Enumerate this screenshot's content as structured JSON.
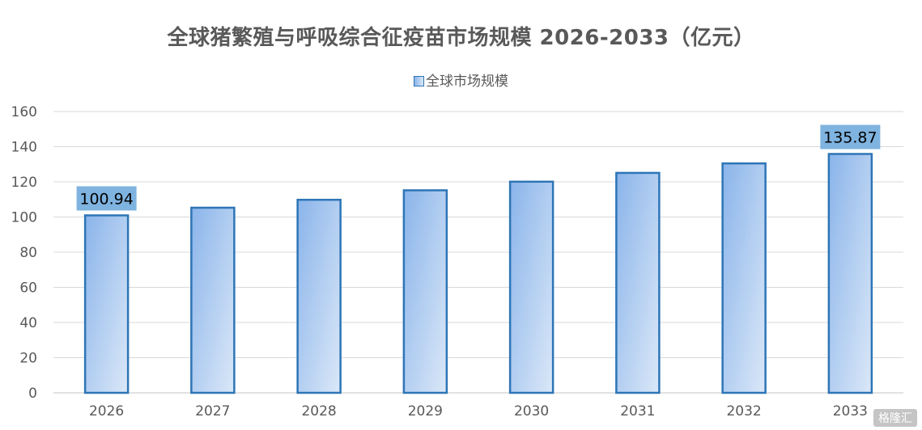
{
  "chart_data": {
    "type": "bar",
    "title": "全球猪繁殖与呼吸综合征疫苗市场规模 2026-2033（亿元）",
    "categories": [
      "2026",
      "2027",
      "2028",
      "2029",
      "2030",
      "2031",
      "2032",
      "2033"
    ],
    "series": [
      {
        "name": "全球市场规模",
        "values": [
          100.94,
          105.3,
          109.8,
          115.2,
          120.1,
          125.1,
          130.5,
          135.87
        ]
      }
    ],
    "data_labels": [
      "100.94",
      "",
      "",
      "",
      "",
      "",
      "",
      "135.87"
    ],
    "ylim": [
      0,
      160
    ],
    "yticks": [
      "0",
      "20",
      "40",
      "60",
      "80",
      "100",
      "120",
      "140",
      "160"
    ],
    "xlabel": "",
    "ylabel": "",
    "grid": true,
    "legend_position": "top-center"
  },
  "colors": {
    "bar_fill_start": "#8ab4ea",
    "bar_fill_end": "#dbe8f8",
    "bar_border": "#2e75b6",
    "label_background": "#7fb3e0",
    "gridline": "#d9d9d9",
    "text": "#595959"
  },
  "watermark": "格隆汇"
}
